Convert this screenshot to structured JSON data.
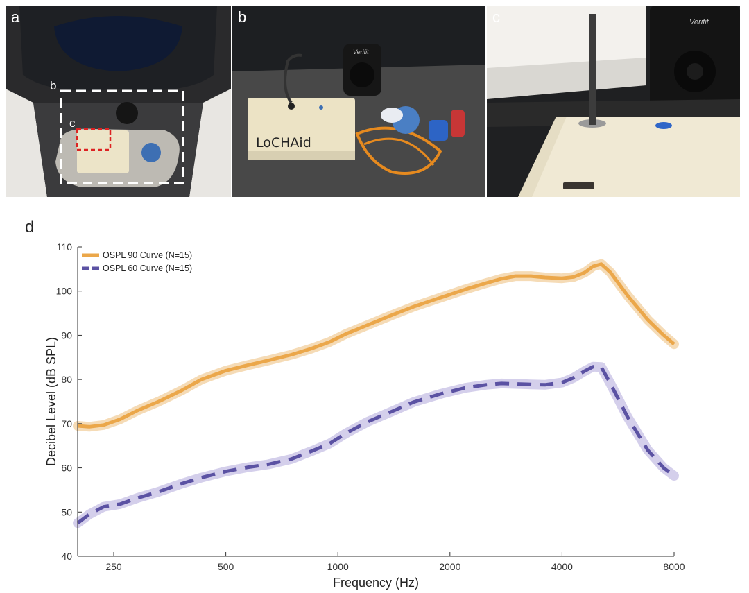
{
  "photos": {
    "a": {
      "letter": "a",
      "inner_b": "b",
      "inner_c": "c"
    },
    "b": {
      "letter": "b",
      "device_label": "LoCHAid",
      "brand": "Verifit"
    },
    "c": {
      "letter": "c",
      "brand": "Verifit"
    }
  },
  "panel_d_letter": "d",
  "colors": {
    "osplt90": "#EBA74A",
    "osplt90_band": "#F3D2A4",
    "osplt60": "#5B52A3",
    "osplt60_band": "#C9C3E6"
  },
  "chart_data": {
    "type": "line",
    "title": "",
    "xlabel": "Frequency (Hz)",
    "ylabel": "Decibel Level (dB SPL)",
    "xscale": "log",
    "xlim": [
      200,
      8000
    ],
    "ylim": [
      40,
      110
    ],
    "xticks": [
      250,
      500,
      1000,
      2000,
      4000,
      8000
    ],
    "yticks": [
      40,
      50,
      60,
      70,
      80,
      90,
      100,
      110
    ],
    "grid": false,
    "legend_position": "top-left",
    "series": [
      {
        "name": "OSPL 90 Curve (N=15)",
        "style": "solid",
        "x": [
          200,
          215,
          235,
          260,
          290,
          330,
          380,
          430,
          500,
          570,
          650,
          750,
          850,
          950,
          1050,
          1200,
          1400,
          1600,
          1900,
          2200,
          2500,
          2750,
          3000,
          3300,
          3600,
          4000,
          4300,
          4600,
          4850,
          5100,
          5400,
          6000,
          6800,
          7500,
          8000
        ],
        "y": [
          69.5,
          69.3,
          69.7,
          71.0,
          73.0,
          75.0,
          77.5,
          80.0,
          82.0,
          83.2,
          84.3,
          85.6,
          87.0,
          88.5,
          90.3,
          92.3,
          94.6,
          96.5,
          98.6,
          100.4,
          101.8,
          102.8,
          103.4,
          103.4,
          103.1,
          102.9,
          103.2,
          104.2,
          105.6,
          106.1,
          104.2,
          99.0,
          93.5,
          90.0,
          88.0
        ]
      },
      {
        "name": "OSPL 60 Curve (N=15)",
        "style": "dashed",
        "x": [
          200,
          215,
          235,
          260,
          290,
          330,
          380,
          430,
          500,
          570,
          650,
          750,
          850,
          950,
          1050,
          1200,
          1400,
          1600,
          1900,
          2200,
          2500,
          2750,
          3000,
          3300,
          3600,
          4000,
          4300,
          4600,
          4850,
          5100,
          5400,
          6000,
          6800,
          7500,
          8000
        ],
        "y": [
          47.5,
          49.5,
          51.2,
          51.8,
          53.2,
          54.6,
          56.4,
          57.8,
          59.2,
          60.1,
          60.8,
          62.0,
          63.8,
          65.5,
          67.8,
          70.4,
          72.8,
          74.9,
          76.8,
          78.1,
          78.8,
          79.1,
          79.0,
          78.9,
          78.8,
          79.3,
          80.4,
          81.9,
          82.9,
          82.8,
          79.0,
          71.5,
          64.0,
          60.0,
          58.2
        ]
      }
    ]
  }
}
